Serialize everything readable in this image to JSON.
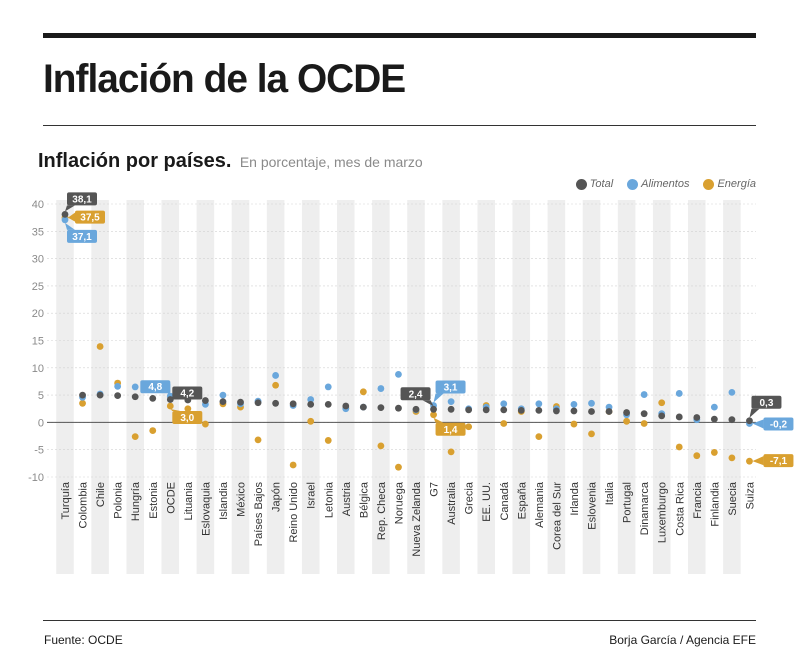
{
  "title": "Inflación de la OCDE",
  "subtitle": {
    "main": "Inflación por países.",
    "note": "En porcentaje, mes de marzo"
  },
  "legend": [
    {
      "label": "Total",
      "color": "#555555"
    },
    {
      "label": "Alimentos",
      "color": "#6aa7dc"
    },
    {
      "label": "Energía",
      "color": "#d9a030"
    }
  ],
  "footer": {
    "source": "Fuente: OCDE",
    "credit": "Borja García / Agencia EFE"
  },
  "chart_data": {
    "type": "scatter",
    "title": "Inflación por países",
    "ylim": [
      -10,
      40
    ],
    "yticks": [
      "-10",
      "-5",
      "0",
      "5",
      "10",
      "15",
      "20",
      "25",
      "30",
      "35",
      "40"
    ],
    "categories": [
      "Turquía",
      "Colombia",
      "Chile",
      "Polonia",
      "Hungría",
      "Estonia",
      "OCDE",
      "Lituania",
      "Eslovaquia",
      "Islandia",
      "México",
      "Países Bajos",
      "Japón",
      "Reino Unido",
      "Israel",
      "Letonia",
      "Austria",
      "Bélgica",
      "Rep. Checa",
      "Noruega",
      "Nueva Zelanda",
      "G7",
      "Australia",
      "Grecia",
      "EE. UU.",
      "Canadá",
      "España",
      "Alemania",
      "Corea del Sur",
      "Irlanda",
      "Eslovenia",
      "Italia",
      "Portugal",
      "Dinamarca",
      "Luxemburgo",
      "Costa Rica",
      "Francia",
      "Finlandia",
      "Suecia",
      "Suiza"
    ],
    "series": [
      {
        "name": "Total",
        "color": "#555555",
        "values": [
          38.1,
          5.0,
          5.0,
          4.9,
          4.7,
          4.4,
          4.2,
          4.1,
          4.0,
          3.8,
          3.7,
          3.6,
          3.5,
          3.4,
          3.3,
          3.3,
          3.0,
          2.8,
          2.7,
          2.6,
          2.4,
          2.4,
          2.4,
          2.3,
          2.3,
          2.3,
          2.2,
          2.2,
          2.1,
          2.1,
          2.0,
          2.0,
          1.8,
          1.6,
          1.2,
          1.0,
          0.9,
          0.6,
          0.5,
          0.3
        ]
      },
      {
        "name": "Alimentos",
        "color": "#6aa7dc",
        "values": [
          37.1,
          4.6,
          5.2,
          6.6,
          6.5,
          6.8,
          4.8,
          4.5,
          3.3,
          5.0,
          3.4,
          3.9,
          8.6,
          3.1,
          4.2,
          6.5,
          2.5,
          2.8,
          6.2,
          8.8,
          2.3,
          3.1,
          3.8,
          2.5,
          2.8,
          3.4,
          2.5,
          3.4,
          2.5,
          3.3,
          3.5,
          2.8,
          1.4,
          5.1,
          1.6,
          5.3,
          0.5,
          2.8,
          5.5,
          -0.2
        ]
      },
      {
        "name": "Energía",
        "color": "#d9a030",
        "values": [
          37.5,
          3.5,
          13.9,
          7.2,
          -2.6,
          -1.5,
          3.0,
          2.5,
          -0.3,
          3.4,
          2.8,
          -3.2,
          6.8,
          -7.8,
          0.2,
          -3.3,
          2.6,
          5.6,
          -4.3,
          -8.2,
          2.0,
          1.4,
          -5.4,
          -0.8,
          3.1,
          -0.2,
          2.0,
          -2.6,
          2.9,
          -0.3,
          -2.1,
          2.0,
          0.2,
          -0.2,
          3.6,
          -4.5,
          -6.1,
          -5.5,
          -6.5,
          -7.1
        ]
      }
    ],
    "annotations": [
      {
        "text": "38,1",
        "series": "Total",
        "category": "Turquía",
        "value": 38.1
      },
      {
        "text": "37,5",
        "series": "Energía",
        "category": "Turquía",
        "value": 37.5
      },
      {
        "text": "37,1",
        "series": "Alimentos",
        "category": "Turquía",
        "value": 37.1
      },
      {
        "text": "4,8",
        "series": "Alimentos",
        "category": "OCDE",
        "value": 4.8
      },
      {
        "text": "4,2",
        "series": "Total",
        "category": "OCDE",
        "value": 4.2
      },
      {
        "text": "3,0",
        "series": "Energía",
        "category": "OCDE",
        "value": 3.0
      },
      {
        "text": "2,4",
        "series": "Total",
        "category": "G7",
        "value": 2.4
      },
      {
        "text": "3,1",
        "series": "Alimentos",
        "category": "G7",
        "value": 3.1
      },
      {
        "text": "1,4",
        "series": "Energía",
        "category": "G7",
        "value": 1.4
      },
      {
        "text": "0,3",
        "series": "Total",
        "category": "Suiza",
        "value": 0.3
      },
      {
        "text": "-0,2",
        "series": "Alimentos",
        "category": "Suiza",
        "value": -0.2
      },
      {
        "text": "-7,1",
        "series": "Energía",
        "category": "Suiza",
        "value": -7.1
      }
    ]
  }
}
